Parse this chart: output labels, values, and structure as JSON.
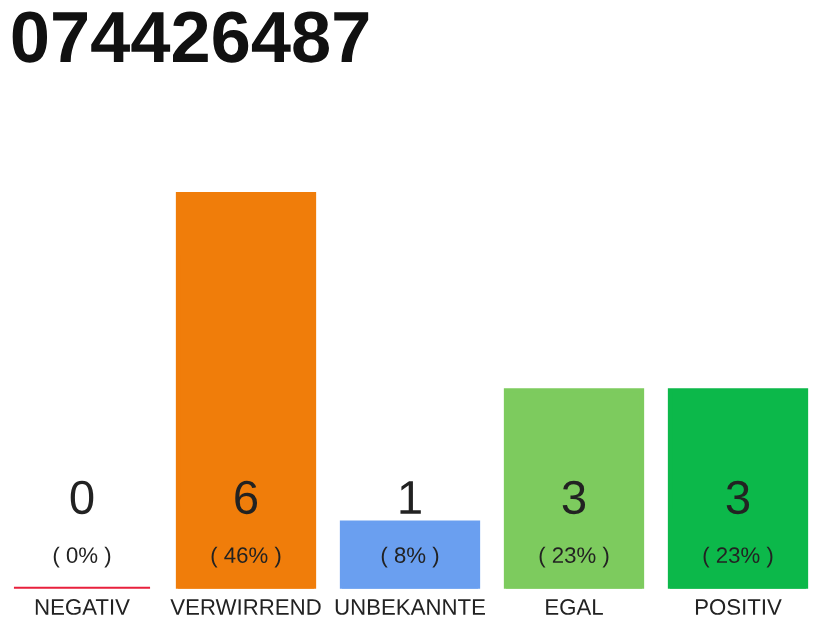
{
  "chart_data": {
    "type": "bar",
    "title": "074426487",
    "categories": [
      "NEGATIV",
      "VERWIRREND",
      "UNBEKANNTE",
      "EGAL",
      "POSITIV"
    ],
    "values": [
      0,
      6,
      1,
      3,
      3
    ],
    "colors": [
      "#e8203c",
      "#f07d0a",
      "#6a9ff0",
      "#7dcb5e",
      "#0cb84a"
    ],
    "value_labels": [
      "0\n( 0% )",
      "6\n( 46% )",
      "1\n( 8% )",
      "3\n( 23% )",
      "3\n( 23% )"
    ],
    "grid": false,
    "legend": false,
    "tick_labels": "x"
  }
}
